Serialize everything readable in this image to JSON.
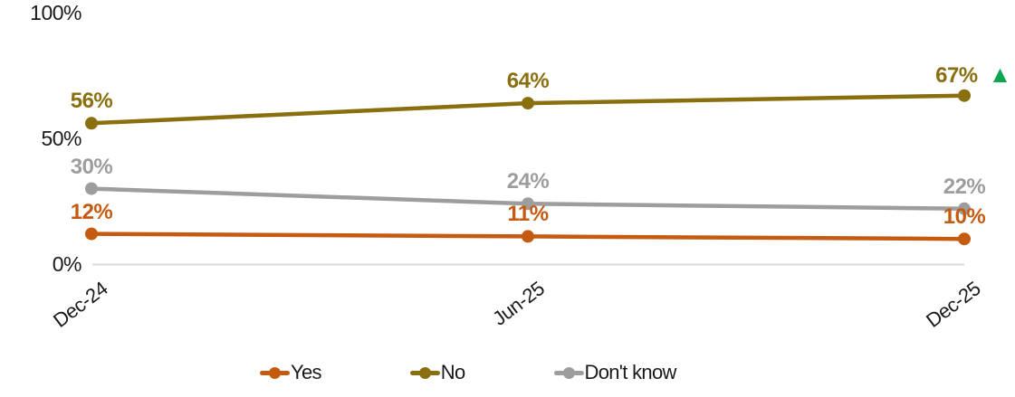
{
  "chart_data": {
    "type": "line",
    "title": "",
    "xlabel": "",
    "ylabel": "",
    "categories": [
      "Dec-24",
      "Jun-25",
      "Dec-25"
    ],
    "series": [
      {
        "name": "Yes",
        "values": [
          12,
          11,
          10
        ],
        "labels": [
          "12%",
          "11%",
          "10%"
        ],
        "color": "#C55A11"
      },
      {
        "name": "No",
        "values": [
          56,
          64,
          67
        ],
        "labels": [
          "56%",
          "64%",
          "67%"
        ],
        "color": "#8A6F0F",
        "last_point_annotation": {
          "symbol": "▲",
          "color": "#0EA551"
        }
      },
      {
        "name": "Don't know",
        "values": [
          30,
          24,
          22
        ],
        "labels": [
          "30%",
          "24%",
          "22%"
        ],
        "color": "#9D9D9D"
      }
    ],
    "yaxis": {
      "range": [
        0,
        100
      ],
      "ticks": [
        {
          "label": "0%",
          "value": 0
        },
        {
          "label": "50%",
          "value": 50
        },
        {
          "label": "100%",
          "value": 100
        }
      ],
      "gridlines": "zero-line-only"
    },
    "legend": {
      "position": "bottom",
      "items": [
        "Yes",
        "No",
        "Don't know"
      ]
    },
    "colors": {
      "gridline": "#D9D9D9",
      "axis_text": "#1a1a1a",
      "annotation_green": "#0EA551"
    }
  }
}
